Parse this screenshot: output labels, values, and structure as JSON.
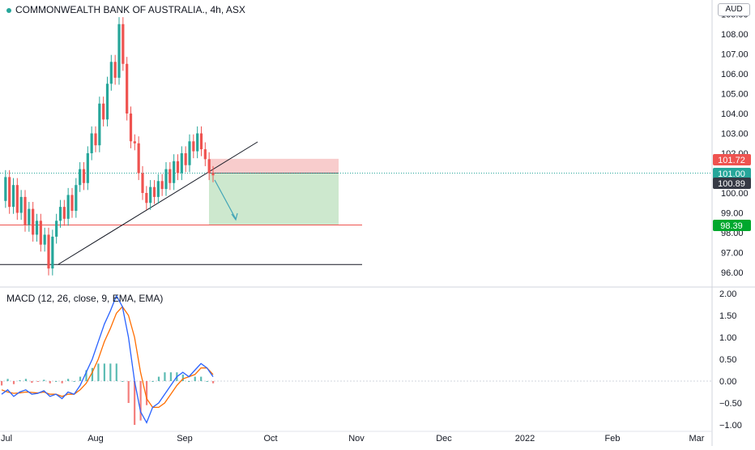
{
  "header": {
    "symbol_line": "COMMONWEALTH BANK OF AUSTRALIA., 4h, ASX",
    "currency": "AUD"
  },
  "macd": {
    "label": "MACD (12, 26, close, 9, EMA, EMA)"
  },
  "colors": {
    "up": "#26a69a",
    "down": "#ef5350",
    "macd_line": "#2962ff",
    "signal_line": "#ff6d00",
    "stop_zone": "#f7c7c7",
    "target_zone": "#c8e6c9",
    "trendline": "#131722",
    "support": "#131722"
  },
  "chart_data": [
    {
      "type": "candlestick",
      "title": "COMMONWEALTH BANK OF AUSTRALIA., 4h, ASX",
      "ylim": [
        95.6,
        109.2
      ],
      "y_ticks": [
        "96.00",
        "97.00",
        "98.00",
        "99.00",
        "100.00",
        "101.00",
        "102.00",
        "103.00",
        "104.00",
        "105.00",
        "106.00",
        "107.00",
        "108.00",
        "109.00"
      ],
      "x_ticks": [
        "Jul",
        "Aug",
        "Sep",
        "Oct",
        "Nov",
        "Dec",
        "2022",
        "Feb",
        "Mar"
      ],
      "price_labels": [
        {
          "label": "101.72",
          "value": 101.72,
          "color": "#ef5350"
        },
        {
          "label": "101.00",
          "value": 101.0,
          "color": "#26a69a"
        },
        {
          "label": "100.89",
          "value": 100.89,
          "color": "#363a45"
        },
        {
          "label": "98.39",
          "value": 98.39,
          "color": "#00a82d"
        }
      ],
      "price_path": [
        99.6,
        100.8,
        99.3,
        100.4,
        99.0,
        99.8,
        98.4,
        99.2,
        97.9,
        98.6,
        97.4,
        97.9,
        96.2,
        97.8,
        98.6,
        99.3,
        98.7,
        99.9,
        99.1,
        100.4,
        101.2,
        100.5,
        102.0,
        103.0,
        102.4,
        104.5,
        103.7,
        105.5,
        106.6,
        105.8,
        108.5,
        106.5,
        104.0,
        102.6,
        102.5,
        101.0,
        100.0,
        99.5,
        100.3,
        99.8,
        100.6,
        100.2,
        101.2,
        100.5,
        101.6,
        101.0,
        102.0,
        101.4,
        102.6,
        102.1,
        103.0,
        102.2,
        101.7,
        101.0,
        100.89
      ],
      "trend_levels": [
        {
          "kind": "support",
          "value": 96.4
        },
        {
          "kind": "target",
          "value": 98.39
        }
      ],
      "position": {
        "stop": 101.72,
        "entry": 101.0,
        "target": 98.39
      }
    },
    {
      "type": "line",
      "title": "MACD (12, 26, close, 9, EMA, EMA)",
      "ylim": [
        -1.0,
        2.0
      ],
      "y_ticks": [
        "2.00",
        "1.50",
        "1.00",
        "0.50",
        "0.00",
        "−0.50",
        "−1.00"
      ],
      "series": [
        {
          "name": "MACD",
          "values": [
            -0.3,
            -0.2,
            -0.35,
            -0.25,
            -0.2,
            -0.3,
            -0.28,
            -0.22,
            -0.35,
            -0.3,
            -0.4,
            -0.25,
            -0.3,
            -0.1,
            0.2,
            0.5,
            0.9,
            1.3,
            1.6,
            1.95,
            1.7,
            1.0,
            0.0,
            -0.7,
            -0.95,
            -0.6,
            -0.5,
            -0.3,
            -0.1,
            0.1,
            0.2,
            0.1,
            0.25,
            0.4,
            0.3,
            0.1
          ]
        },
        {
          "name": "Signal",
          "values": [
            -0.2,
            -0.25,
            -0.28,
            -0.27,
            -0.25,
            -0.26,
            -0.27,
            -0.25,
            -0.3,
            -0.3,
            -0.35,
            -0.3,
            -0.3,
            -0.2,
            -0.05,
            0.2,
            0.5,
            0.9,
            1.2,
            1.55,
            1.7,
            1.5,
            1.0,
            0.2,
            -0.4,
            -0.6,
            -0.6,
            -0.5,
            -0.3,
            -0.1,
            0.05,
            0.1,
            0.15,
            0.3,
            0.3,
            0.15
          ]
        }
      ]
    }
  ]
}
